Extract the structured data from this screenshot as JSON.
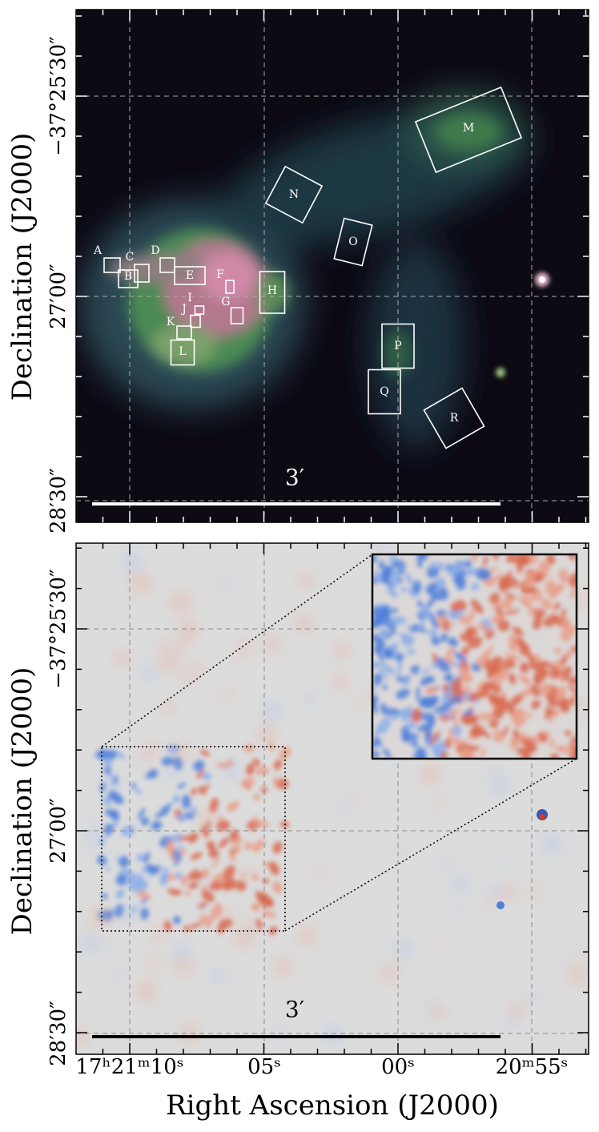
{
  "panels": [
    {
      "y_axis_label": "Declination (J2000)",
      "y_tick_labels": [
        "−37°25′30″",
        "27′00″",
        "28′30″"
      ],
      "scale_bar": "3′",
      "regions": [
        "A",
        "B",
        "C",
        "D",
        "E",
        "F",
        "G",
        "H",
        "I",
        "J",
        "K",
        "L",
        "M",
        "N",
        "O",
        "P",
        "Q",
        "R"
      ]
    },
    {
      "y_axis_label": "Declination (J2000)",
      "y_tick_labels": [
        "−37°25′30″",
        "27′00″",
        "28′30″"
      ],
      "scale_bar": "3′"
    }
  ],
  "x_tick_labels": [
    "17ʰ21ᵐ10ˢ",
    "05ˢ",
    "00ˢ",
    "20ᵐ55ˢ"
  ],
  "x_axis_label": "Right Ascension (J2000)"
}
